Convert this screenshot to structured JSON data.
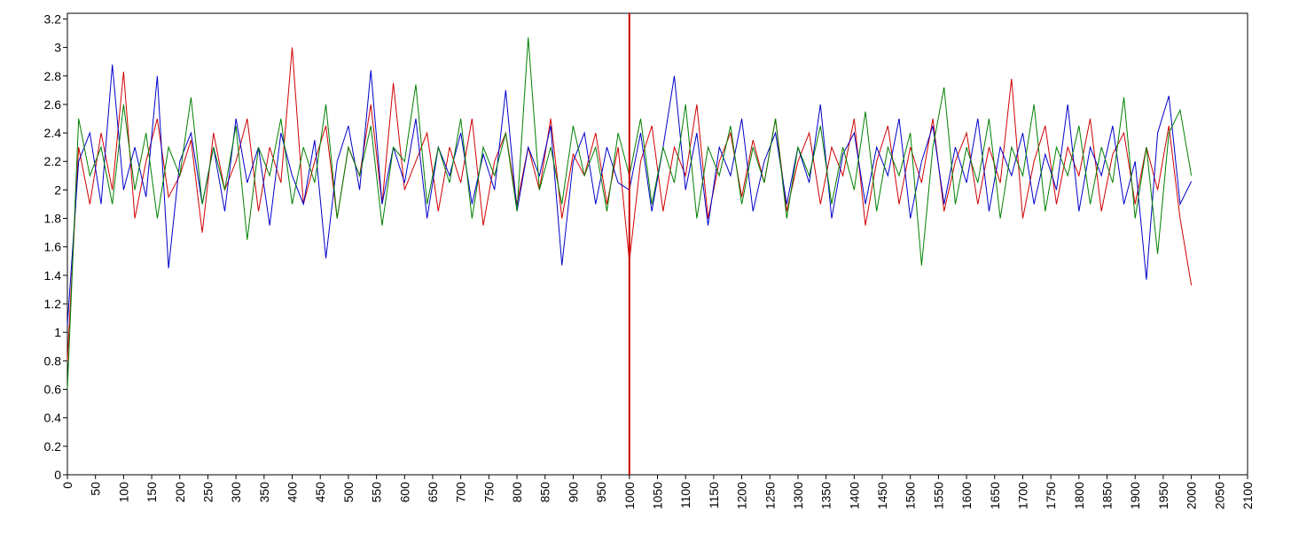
{
  "chart_data": {
    "type": "line",
    "xlim": [
      0,
      2100
    ],
    "xticks": [
      0,
      50,
      100,
      150,
      200,
      250,
      300,
      350,
      400,
      450,
      500,
      550,
      600,
      650,
      700,
      750,
      800,
      850,
      900,
      950,
      1000,
      1050,
      1100,
      1150,
      1200,
      1250,
      1300,
      1350,
      1400,
      1450,
      1500,
      1550,
      1600,
      1650,
      1700,
      1750,
      1800,
      1850,
      1900,
      1950,
      2000,
      2050,
      2100
    ],
    "ylim": [
      0,
      3.24
    ],
    "yticks": [
      0,
      0.2,
      0.4,
      0.6,
      0.8,
      1,
      1.2,
      1.4,
      1.6,
      1.8,
      2,
      2.2,
      2.4,
      2.6,
      2.8,
      3,
      3.2
    ],
    "grid": false,
    "vline": 1000,
    "vline_color": "#cc0000",
    "x": [
      0,
      20,
      40,
      60,
      80,
      100,
      120,
      140,
      160,
      180,
      200,
      220,
      240,
      260,
      280,
      300,
      320,
      340,
      360,
      380,
      400,
      420,
      440,
      460,
      480,
      500,
      520,
      540,
      560,
      580,
      600,
      620,
      640,
      660,
      680,
      700,
      720,
      740,
      760,
      780,
      800,
      820,
      840,
      860,
      880,
      900,
      920,
      940,
      960,
      980,
      1000,
      1020,
      1040,
      1060,
      1080,
      1100,
      1120,
      1140,
      1160,
      1180,
      1200,
      1220,
      1240,
      1260,
      1280,
      1300,
      1320,
      1340,
      1360,
      1380,
      1400,
      1420,
      1440,
      1460,
      1480,
      1500,
      1520,
      1540,
      1560,
      1580,
      1600,
      1620,
      1640,
      1660,
      1680,
      1700,
      1720,
      1740,
      1760,
      1780,
      1800,
      1820,
      1840,
      1860,
      1880,
      1900,
      1920,
      1940,
      1960,
      1980,
      2000
    ],
    "series": [
      {
        "color": "#d00000",
        "values": [
          0.8,
          2.3,
          1.9,
          2.4,
          2.0,
          2.83,
          1.8,
          2.2,
          2.5,
          1.95,
          2.1,
          2.35,
          1.7,
          2.4,
          2.0,
          2.2,
          2.5,
          1.85,
          2.3,
          2.05,
          3.0,
          1.9,
          2.2,
          2.45,
          1.8,
          2.3,
          2.1,
          2.6,
          1.9,
          2.75,
          2.0,
          2.2,
          2.4,
          1.85,
          2.3,
          2.05,
          2.5,
          1.75,
          2.2,
          2.4,
          1.9,
          2.3,
          2.0,
          2.5,
          1.8,
          2.25,
          2.1,
          2.4,
          1.9,
          2.3,
          1.5,
          2.2,
          2.45,
          1.85,
          2.3,
          2.1,
          2.6,
          1.8,
          2.2,
          2.4,
          1.95,
          2.35,
          2.05,
          2.5,
          1.85,
          2.2,
          2.4,
          1.9,
          2.3,
          2.1,
          2.5,
          1.75,
          2.2,
          2.45,
          1.9,
          2.3,
          2.05,
          2.5,
          1.85,
          2.2,
          2.4,
          1.9,
          2.3,
          2.05,
          2.78,
          1.8,
          2.2,
          2.45,
          1.9,
          2.3,
          2.1,
          2.5,
          1.85,
          2.25,
          2.4,
          1.9,
          2.3,
          2.0,
          2.45,
          1.8,
          1.33
        ]
      },
      {
        "color": "#0000cc",
        "values": [
          1.05,
          2.2,
          2.4,
          1.9,
          2.88,
          2.0,
          2.3,
          1.95,
          2.8,
          1.45,
          2.2,
          2.4,
          1.9,
          2.3,
          1.85,
          2.5,
          2.05,
          2.3,
          1.75,
          2.4,
          2.1,
          1.9,
          2.35,
          1.52,
          2.2,
          2.45,
          2.0,
          2.84,
          1.9,
          2.3,
          2.05,
          2.5,
          1.8,
          2.3,
          2.1,
          2.4,
          1.9,
          2.25,
          2.0,
          2.7,
          1.85,
          2.3,
          2.1,
          2.45,
          1.47,
          2.2,
          2.4,
          1.9,
          2.3,
          2.05,
          2.0,
          2.4,
          1.85,
          2.3,
          2.8,
          2.0,
          2.4,
          1.75,
          2.3,
          2.1,
          2.5,
          1.85,
          2.2,
          2.4,
          1.9,
          2.3,
          2.05,
          2.6,
          1.8,
          2.25,
          2.4,
          1.9,
          2.3,
          2.1,
          2.5,
          1.8,
          2.2,
          2.45,
          1.9,
          2.3,
          2.05,
          2.5,
          1.85,
          2.3,
          2.1,
          2.4,
          1.9,
          2.25,
          2.0,
          2.6,
          1.85,
          2.3,
          2.1,
          2.45,
          1.9,
          2.2,
          1.37,
          2.4,
          2.66,
          1.9,
          2.06
        ]
      },
      {
        "color": "#008000",
        "values": [
          0.6,
          2.5,
          2.1,
          2.3,
          1.9,
          2.6,
          2.0,
          2.4,
          1.8,
          2.3,
          2.1,
          2.65,
          1.9,
          2.3,
          2.0,
          2.45,
          1.65,
          2.3,
          2.1,
          2.5,
          1.9,
          2.3,
          2.05,
          2.6,
          1.8,
          2.3,
          2.1,
          2.45,
          1.75,
          2.3,
          2.2,
          2.74,
          1.9,
          2.3,
          2.05,
          2.5,
          1.8,
          2.3,
          2.1,
          2.4,
          1.85,
          3.07,
          2.0,
          2.3,
          1.9,
          2.45,
          2.1,
          2.3,
          1.85,
          2.4,
          2.1,
          2.5,
          1.9,
          2.3,
          2.05,
          2.6,
          1.8,
          2.3,
          2.1,
          2.45,
          1.9,
          2.3,
          2.05,
          2.5,
          1.8,
          2.3,
          2.1,
          2.45,
          1.9,
          2.3,
          2.0,
          2.55,
          1.85,
          2.3,
          2.1,
          2.4,
          1.47,
          2.3,
          2.72,
          1.9,
          2.3,
          2.05,
          2.5,
          1.8,
          2.3,
          2.1,
          2.6,
          1.85,
          2.3,
          2.1,
          2.45,
          1.9,
          2.3,
          2.05,
          2.65,
          1.8,
          2.3,
          1.55,
          2.4,
          2.56,
          2.1
        ]
      }
    ]
  }
}
